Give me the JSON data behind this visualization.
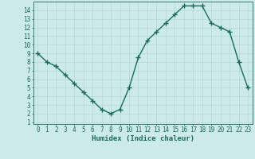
{
  "x": [
    0,
    1,
    2,
    3,
    4,
    5,
    6,
    7,
    8,
    9,
    10,
    11,
    12,
    13,
    14,
    15,
    16,
    17,
    18,
    19,
    20,
    21,
    22,
    23
  ],
  "y": [
    9,
    8,
    7.5,
    6.5,
    5.5,
    4.5,
    3.5,
    2.5,
    2,
    2.5,
    5,
    8.5,
    10.5,
    11.5,
    12.5,
    13.5,
    14.5,
    14.5,
    14.5,
    12.5,
    12,
    11.5,
    8,
    5
  ],
  "xlabel": "Humidex (Indice chaleur)",
  "line_color": "#1a6b5a",
  "marker": "+",
  "bg_color": "#cceae7",
  "grid_color": "#b8dbd8",
  "ylim_min": 0.8,
  "ylim_max": 15.0,
  "xlim_min": -0.5,
  "xlim_max": 23.5,
  "yticks": [
    1,
    2,
    3,
    4,
    5,
    6,
    7,
    8,
    9,
    10,
    11,
    12,
    13,
    14
  ],
  "xticks": [
    0,
    1,
    2,
    3,
    4,
    5,
    6,
    7,
    8,
    9,
    10,
    11,
    12,
    13,
    14,
    15,
    16,
    17,
    18,
    19,
    20,
    21,
    22,
    23
  ],
  "tick_fontsize": 5.5,
  "xlabel_fontsize": 6.5,
  "linewidth": 1.0,
  "markersize": 4,
  "markeredgewidth": 1.0
}
